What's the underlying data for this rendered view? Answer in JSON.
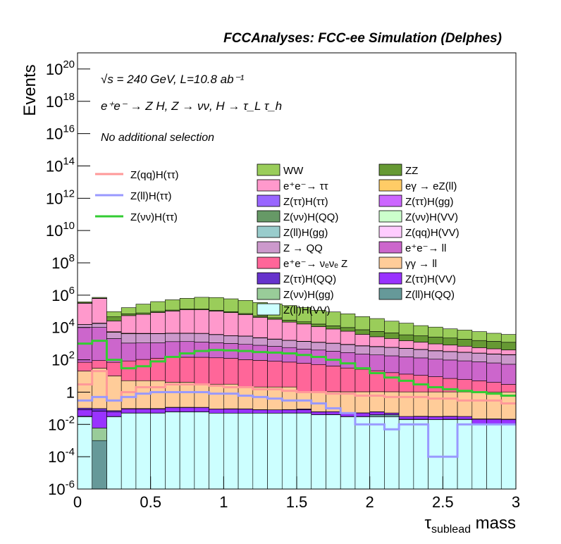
{
  "chart_data": {
    "type": "stacked_histogram",
    "header": "FCCAnalyses: FCC-ee Simulation (Delphes)",
    "annotations": [
      "√s = 240 GeV, L=10.8 ab⁻¹",
      "e⁺e⁻ → Z H, Z → νν, H → τ_L τ_h",
      "No additional selection"
    ],
    "y_label": "Events",
    "x_label": {
      "symbol": "τ",
      "subscript": "sublead",
      "text": " mass"
    },
    "log_y": true,
    "xlim": [
      0,
      3
    ],
    "xticks": [
      0,
      0.5,
      1,
      1.5,
      2,
      2.5,
      3
    ],
    "ylim": [
      1e-06,
      1e+21
    ],
    "yticks": [
      {
        "value": 1e-06,
        "label": "10",
        "sup": "-6"
      },
      {
        "value": 0.0001,
        "label": "10",
        "sup": "-4"
      },
      {
        "value": 0.01,
        "label": "10",
        "sup": "-2"
      },
      1,
      {
        "value": 100,
        "label": "10",
        "sup": "2"
      },
      {
        "value": 10000,
        "label": "10",
        "sup": "4"
      },
      {
        "value": 1000000,
        "label": "10",
        "sup": "6"
      },
      {
        "value": 100000000,
        "label": "10",
        "sup": "8"
      },
      {
        "value": 10000000000,
        "label": "10",
        "sup": "10"
      },
      {
        "value": 1000000000000,
        "label": "10",
        "sup": "12"
      },
      {
        "value": 100000000000000,
        "label": "10",
        "sup": "14"
      },
      {
        "value": 10000000000000000,
        "label": "10",
        "sup": "16"
      },
      {
        "value": 1000000000000000000,
        "label": "10",
        "sup": "18"
      },
      {
        "value": 1e+20,
        "label": "10",
        "sup": "20"
      }
    ],
    "bins": [
      0,
      0.1,
      0.2,
      0.3,
      0.4,
      0.5,
      0.6,
      0.7,
      0.8,
      0.9,
      1,
      1.1,
      1.2,
      1.3,
      1.4,
      1.5,
      1.6,
      1.7,
      1.8,
      1.9,
      2,
      2.1,
      2.2,
      2.3,
      2.4,
      2.5,
      2.6,
      2.7,
      2.8,
      2.9,
      3
    ],
    "series": [
      {
        "name": "WW",
        "color": "#9acd5a",
        "values": [
          50000,
          80000,
          50000,
          100000,
          200000,
          300000,
          400000,
          500000,
          600000,
          600000,
          500000,
          400000,
          300000,
          250000,
          200000,
          150000,
          100000,
          80000,
          60000,
          40000,
          30000,
          20000,
          15000,
          10000,
          8000,
          6000,
          5000,
          4000,
          3000,
          2500
        ]
      },
      {
        "name": "ZZ",
        "color": "#669933",
        "values": [
          20000,
          30000,
          20000,
          15000,
          15000,
          15000,
          15000,
          15000,
          14000,
          13000,
          12000,
          10000,
          9000,
          8000,
          7000,
          6000,
          5000,
          4500,
          4000,
          3500,
          3000,
          2500,
          2000,
          1800,
          1600,
          1400,
          1200,
          1000,
          900,
          800
        ]
      },
      {
        "name": "e⁺e⁻→ ττ",
        "color": "#ff99cc",
        "values": [
          300000,
          600000,
          20000,
          50000,
          60000,
          80000,
          100000,
          120000,
          120000,
          100000,
          80000,
          60000,
          40000,
          30000,
          20000,
          15000,
          10000,
          7000,
          5000,
          3000,
          2000,
          1500,
          1000,
          800,
          600,
          500,
          400,
          300,
          250,
          200
        ]
      },
      {
        "name": "eγ → eZ(ll)",
        "color": "#ffcc66",
        "values": [
          300,
          500,
          400,
          300,
          200,
          100,
          80,
          60,
          50,
          40,
          30,
          25,
          20,
          18,
          16,
          14,
          12,
          10,
          9,
          8,
          7,
          6,
          5,
          4,
          4,
          3,
          3,
          2,
          2,
          2
        ]
      },
      {
        "name": "Z(ττ)H(ττ)",
        "color": "#9966ff",
        "values": [
          3,
          5,
          3,
          2,
          2,
          2,
          2,
          2,
          1.5,
          1.5,
          1,
          1,
          1,
          1,
          0.8,
          0.7,
          0.6,
          0.5,
          0.4,
          0.3,
          0.3,
          0.2,
          0.2,
          0.2,
          0.15,
          0.1,
          0.1,
          0.1,
          0.1,
          0.1
        ]
      },
      {
        "name": "Z(ττ)H(gg)",
        "color": "#cc66ff",
        "values": [
          0.3,
          0.5,
          0.2,
          0.2,
          0.3,
          0.3,
          0.3,
          0.3,
          0.3,
          0.3,
          0.2,
          0.2,
          0.2,
          0.2,
          0.2,
          0.15,
          0.15,
          0.1,
          0.1,
          0.1,
          0.1,
          0.08,
          0.08,
          0.06,
          0.06,
          0.05,
          0.05,
          0.04,
          0.04,
          0.03
        ]
      },
      {
        "name": "Z(νν)H(QQ)",
        "color": "#669966",
        "values": [
          10,
          20,
          5,
          5,
          8,
          10,
          12,
          15,
          15,
          15,
          12,
          10,
          10,
          8,
          8,
          6,
          5,
          4,
          3,
          3,
          2,
          2,
          2,
          1.5,
          1.5,
          1,
          1,
          1,
          1,
          1
        ]
      },
      {
        "name": "Z(νν)H(VV)",
        "color": "#ccffcc",
        "values": [
          20,
          30,
          10,
          10,
          15,
          20,
          25,
          30,
          35,
          35,
          30,
          30,
          25,
          25,
          20,
          20,
          15,
          15,
          12,
          10,
          10,
          8,
          8,
          6,
          6,
          5,
          5,
          4,
          4,
          3
        ]
      },
      {
        "name": "Z(ll)H(gg)",
        "color": "#99cccc",
        "values": [
          0,
          0.01,
          0,
          0,
          0,
          0,
          0,
          0,
          0,
          0,
          0,
          0,
          0,
          0,
          1e-05,
          0,
          0,
          0,
          0,
          0,
          0,
          0,
          0,
          0,
          0,
          0,
          0,
          0,
          0,
          0
        ]
      },
      {
        "name": "Z(qq)H(VV)",
        "color": "#ffccff",
        "values": [
          0.3,
          0.5,
          0.1,
          0.2,
          0.3,
          0.3,
          0.4,
          0.4,
          0.4,
          0.3,
          0.3,
          0.3,
          0.2,
          0.2,
          0.2,
          0.2,
          0.15,
          0.1,
          0.1,
          0.1,
          0.1,
          0.08,
          0.08,
          0.06,
          0.05,
          0.05,
          0.04,
          0.04,
          0.03,
          0.03
        ]
      },
      {
        "name": "Z → QQ",
        "color": "#cc99cc",
        "values": [
          5000,
          8000,
          3000,
          3000,
          3000,
          3000,
          3000,
          3000,
          3000,
          2500,
          2000,
          2000,
          1500,
          1200,
          1000,
          900,
          800,
          700,
          600,
          500,
          450,
          400,
          350,
          300,
          250,
          220,
          200,
          180,
          160,
          150
        ]
      },
      {
        "name": "e⁺e⁻→ ll",
        "color": "#cc66cc",
        "values": [
          10000,
          10000,
          2000,
          1000,
          1000,
          1000,
          1200,
          1200,
          1100,
          1000,
          900,
          800,
          700,
          600,
          500,
          400,
          350,
          300,
          250,
          200,
          180,
          160,
          140,
          120,
          100,
          90,
          80,
          70,
          60,
          50
        ]
      },
      {
        "name": "e⁺e⁻→ νₑνₑ Z",
        "color": "#ff6699",
        "values": [
          50,
          60,
          60,
          80,
          100,
          120,
          130,
          140,
          140,
          130,
          120,
          100,
          90,
          80,
          70,
          60,
          50,
          40,
          30,
          25,
          20,
          15,
          12,
          10,
          8,
          6,
          5,
          4,
          3,
          2
        ]
      },
      {
        "name": "γγ → ll",
        "color": "#ffcc99",
        "values": [
          20,
          30,
          10,
          5,
          5,
          5,
          4,
          4,
          3,
          3,
          3,
          2,
          2,
          2,
          2,
          1,
          1,
          1,
          1,
          1,
          1,
          1,
          1,
          1,
          1,
          1,
          1,
          1,
          1,
          1
        ]
      },
      {
        "name": "Z(ττ)H(QQ)",
        "color": "#6633cc",
        "values": [
          0.02,
          0.03,
          0.01,
          0.005,
          0.005,
          0.005,
          0.004,
          0.004,
          0.003,
          0.0001,
          0.003,
          0.002,
          0.002,
          0.0001,
          0.002,
          0.01,
          0.001,
          0.001,
          0.0001,
          0.001,
          0.001,
          0.001,
          0.0001,
          0.001,
          0.001,
          0.001,
          0.0001,
          0.001,
          0.001,
          0.001
        ]
      },
      {
        "name": "Z(ττ)H(VV)",
        "color": "#9933ff",
        "values": [
          0.05,
          0.06,
          0.03,
          0.04,
          0.04,
          0.04,
          0.05,
          0.05,
          0.05,
          0.04,
          0.04,
          0.04,
          0.03,
          0.03,
          0.03,
          0.03,
          0.02,
          0.02,
          0.02,
          0.02,
          0.02,
          0.01,
          0.01,
          0.01,
          0.01,
          0.01,
          0.01,
          0.01,
          0.01,
          0.01
        ]
      },
      {
        "name": "Z(νν)H(gg)",
        "color": "#99cc99",
        "values": [
          0,
          0.005,
          0,
          0,
          0,
          0,
          0,
          0,
          0,
          0,
          0,
          0,
          0,
          1e-05,
          0,
          0,
          0,
          0,
          0,
          0,
          0,
          0,
          0,
          0,
          0,
          0,
          0,
          0,
          0,
          0
        ]
      },
      {
        "name": "Z(ll)H(QQ)",
        "color": "#669999",
        "values": [
          0.002,
          0.001,
          0.001,
          0.001,
          0.001,
          0.001,
          0.001,
          0.001,
          0.001,
          1e-05,
          0.0001,
          1e-05,
          0.0001,
          0.0001,
          0.001,
          0.001,
          0.0001,
          0.001,
          0.001,
          0.001,
          0.01,
          0.01,
          0.001,
          0.001,
          0.0001,
          0.001,
          0.001,
          0.001,
          0.001,
          0.0001
        ]
      },
      {
        "name": "Z(ll)H(VV)",
        "color": "#ccffff",
        "values": [
          0.03,
          0,
          0.03,
          0.05,
          0.05,
          0.05,
          0.06,
          0.06,
          0.06,
          0.05,
          0.05,
          0.05,
          0.05,
          0.05,
          0.05,
          0.05,
          0.04,
          0.04,
          0.03,
          0.03,
          0.03,
          0.03,
          0.02,
          0.02,
          0.02,
          0.02,
          0.02,
          0.01,
          0.01,
          0.01
        ]
      }
    ],
    "signal_series": [
      {
        "name": "Z(qq)H(ττ)",
        "color": "#ff9999",
        "values": [
          3,
          20,
          0.3,
          1,
          2,
          2,
          3,
          3,
          3,
          2.5,
          2,
          2,
          1.5,
          1.5,
          1.2,
          1,
          1,
          0.8,
          0.8,
          0.6,
          0.6,
          0.5,
          0.5,
          0.5,
          0.4,
          0.4,
          0.3,
          0.3,
          0.3,
          0.2
        ]
      },
      {
        "name": "Z(ll)H(ττ)",
        "color": "#9999ff",
        "values": [
          0.3,
          0.5,
          0.3,
          0.5,
          0.8,
          1,
          1,
          1,
          1,
          0.8,
          0.8,
          0.6,
          0.5,
          0.4,
          0.3,
          0.3,
          0.2,
          0.1,
          0.05,
          0.01,
          0.01,
          0.005,
          0.01,
          0.01,
          0.0001,
          0.0001,
          0.01,
          0.01,
          0.01,
          0.01
        ]
      },
      {
        "name": "Z(νν)H(ττ)",
        "color": "#33cc33",
        "values": [
          1000,
          1500,
          100,
          30,
          40,
          80,
          150,
          250,
          350,
          400,
          380,
          350,
          300,
          280,
          250,
          200,
          150,
          100,
          60,
          30,
          15,
          8,
          5,
          3,
          2,
          1.5,
          1.2,
          1,
          0.8,
          0.6
        ]
      }
    ]
  }
}
